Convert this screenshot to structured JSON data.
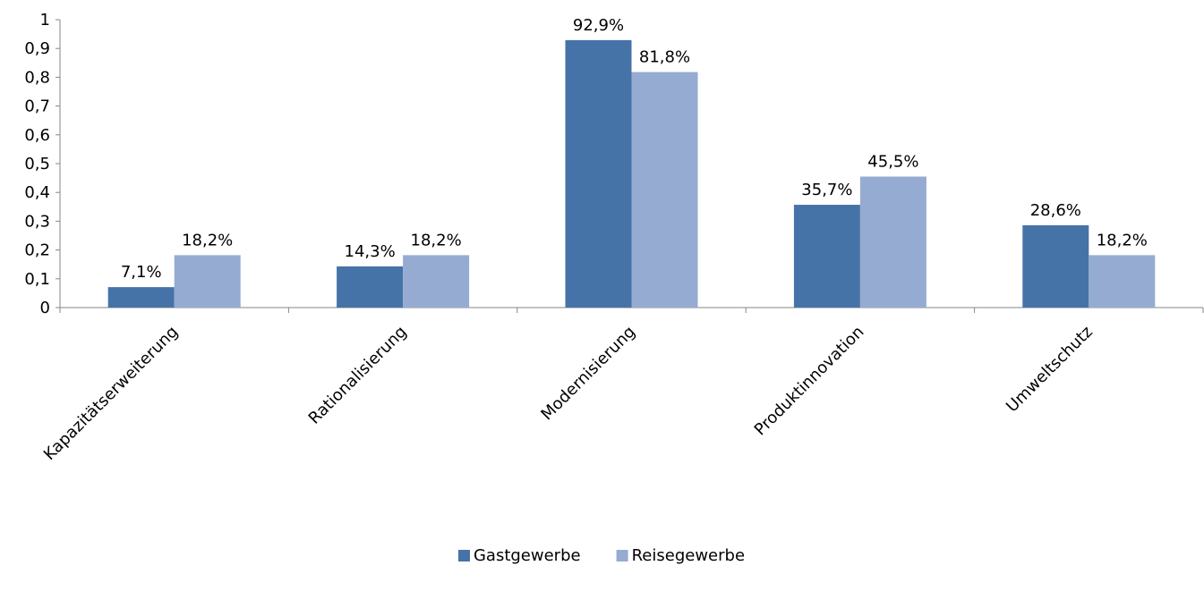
{
  "chart_data": {
    "type": "bar",
    "categories": [
      "Kapazitätserweiterung",
      "Rationalisierung",
      "Modernisierung",
      "Produktinnovation",
      "Umweltschutz"
    ],
    "series": [
      {
        "name": "Gastgewerbe",
        "color": "#4673a7",
        "values": [
          0.071,
          0.143,
          0.929,
          0.357,
          0.286
        ],
        "data_labels": [
          "7,1%",
          "14,3%",
          "92,9%",
          "35,7%",
          "28,6%"
        ]
      },
      {
        "name": "Reisegewerbe",
        "color": "#95abd2",
        "values": [
          0.182,
          0.182,
          0.818,
          0.455,
          0.182
        ],
        "data_labels": [
          "18,2%",
          "18,2%",
          "81,8%",
          "45,5%",
          "18,2%"
        ]
      }
    ],
    "ylim": [
      0,
      1
    ],
    "y_ticks": [
      "0",
      "0,1",
      "0,2",
      "0,3",
      "0,4",
      "0,5",
      "0,6",
      "0,7",
      "0,8",
      "0,9",
      "1"
    ],
    "grid": false,
    "legend_position": "bottom",
    "title": "",
    "xlabel": "",
    "ylabel": ""
  }
}
